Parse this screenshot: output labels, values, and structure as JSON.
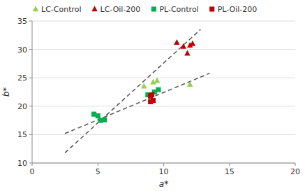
{
  "chart_data": {
    "type": "scatter",
    "x_label": "a*",
    "y_label": "b*",
    "xlim": [
      0,
      20
    ],
    "ylim": [
      10,
      35
    ],
    "xticks": [
      0,
      5,
      10,
      15,
      20
    ],
    "yticks": [
      10,
      15,
      20,
      25,
      30,
      35
    ],
    "grid": "y",
    "legend": "upper left",
    "series": [
      {
        "name": "LC-Control",
        "color": "#92D050",
        "marker": "triangle",
        "x": [
          8.5,
          9.2,
          9.5,
          12.0
        ],
        "values": [
          23.5,
          24.2,
          24.5,
          23.8
        ]
      },
      {
        "name": "LC-Oil-200",
        "color": "#C00000",
        "marker": "triangle",
        "x": [
          11.0,
          11.5,
          11.8,
          12.0,
          12.2
        ],
        "values": [
          31.2,
          30.5,
          29.3,
          30.7,
          31.0
        ]
      },
      {
        "name": "PL-Control",
        "color": "#00B050",
        "marker": "square",
        "x": [
          4.7,
          5.0,
          5.2,
          5.5,
          8.8,
          9.3,
          9.6
        ],
        "values": [
          18.6,
          18.3,
          17.5,
          17.6,
          22.0,
          22.5,
          22.9
        ]
      },
      {
        "name": "PL-Oil-200",
        "color": "#C00000",
        "marker": "square",
        "x": [
          9.0,
          9.1,
          9.0,
          9.2
        ],
        "values": [
          21.8,
          22.0,
          20.8,
          21.0
        ]
      },
      {
        "type": "line",
        "line_style": "dashed",
        "color": "#555555",
        "x": [
          2.5,
          12.8
        ],
        "values": [
          11.8,
          33.5
        ]
      },
      {
        "type": "line",
        "line_style": "dashed",
        "color": "#555555",
        "x": [
          2.5,
          13.5
        ],
        "values": [
          15.2,
          25.8
        ]
      }
    ]
  }
}
